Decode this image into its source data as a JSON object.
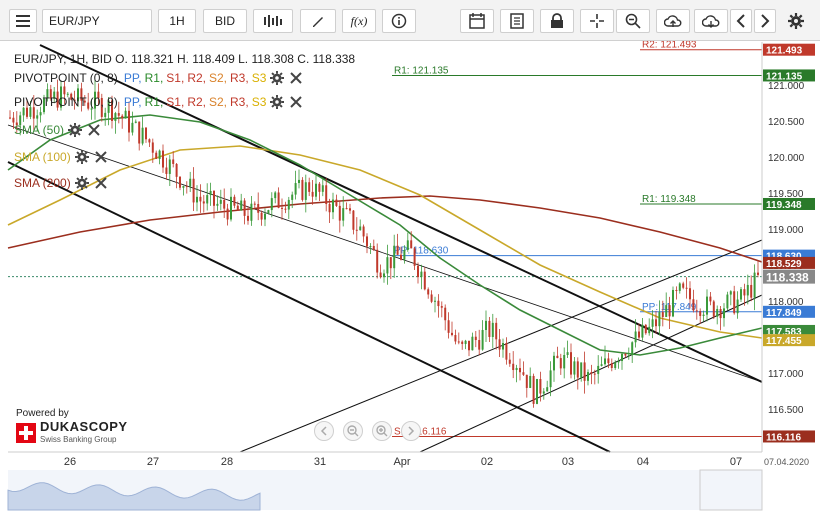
{
  "toolbar": {
    "symbol": "EUR/JPY",
    "timeframe": "1H",
    "price_type": "BID",
    "fx_label": "f(x)"
  },
  "info": {
    "text": "EUR/JPY, 1H, BID   O. 118.321  H. 118.409  L. 118.308  C. 118.338"
  },
  "indicators": [
    {
      "name": "PIVOTPOINT (0, 8)",
      "color": "#222222",
      "levels": [
        "PP,",
        "R1,",
        "S1,",
        "R2,",
        "S2,",
        "R3,",
        "S3"
      ]
    },
    {
      "name": "PIVOTPOINT (0, 9)",
      "color": "#222222",
      "levels": [
        "PP,",
        "R1,",
        "S1,",
        "R2,",
        "S2,",
        "R3,",
        "S3"
      ]
    },
    {
      "name": "SMA (50)",
      "color": "#3a8a3a"
    },
    {
      "name": "SMA (100)",
      "color": "#c9a82a"
    },
    {
      "name": "SMA (200)",
      "color": "#9b2e1e"
    }
  ],
  "level_colors": [
    "#3a7bd5",
    "#2a8a2a",
    "#c0392b",
    "#c0392b",
    "#d9822b",
    "#c0392b",
    "#d9b000"
  ],
  "branding": {
    "powered_by": "Powered by",
    "name": "DUKASCOPY",
    "sub": "Swiss Banking Group"
  },
  "chart_data": {
    "type": "candlestick",
    "x_labels": [
      "26",
      "27",
      "28",
      "31",
      "Apr",
      "02",
      "03",
      "04",
      "07"
    ],
    "date_label": "07.04.2020",
    "y_ticks": [
      121.0,
      120.5,
      120.0,
      119.5,
      119.0,
      118.5,
      118.0,
      117.5,
      117.0,
      116.5
    ],
    "ylim": [
      115.9,
      121.6
    ],
    "current_price": 118.338,
    "pivot_levels": [
      {
        "label": "R2: 121.493",
        "value": 121.493,
        "color": "#c0392b"
      },
      {
        "label": "R1: 121.135",
        "value": 121.135,
        "color": "#2a7a2a"
      },
      {
        "label": "R1: 119.348",
        "value": 119.348,
        "color": "#2a7a2a"
      },
      {
        "label": "PP: 118.630",
        "value": 118.63,
        "color": "#3a7bd5"
      },
      {
        "label": "PP: 117.849",
        "value": 117.849,
        "color": "#3a7bd5"
      },
      {
        "label": "S1: 116.116",
        "value": 116.116,
        "color": "#c0392b"
      }
    ],
    "price_tags": [
      {
        "text": "121.493",
        "value": 121.493,
        "color": "#c0392b"
      },
      {
        "text": "121.135",
        "value": 121.135,
        "color": "#2a7a2a"
      },
      {
        "text": "119.348",
        "value": 119.348,
        "color": "#2a7a2a"
      },
      {
        "text": "118.630",
        "value": 118.63,
        "color": "#3a7bd5"
      },
      {
        "text": "118.529",
        "value": 118.529,
        "color": "#9b2e1e"
      },
      {
        "text": "118.338",
        "value": 118.338,
        "color": "#888888"
      },
      {
        "text": "117.849",
        "value": 117.849,
        "color": "#3a7bd5"
      },
      {
        "text": "117.583",
        "value": 117.583,
        "color": "#3a8a3a"
      },
      {
        "text": "117.455",
        "value": 117.455,
        "color": "#c9a82a"
      },
      {
        "text": "116.116",
        "value": 116.116,
        "color": "#9b2e1e"
      }
    ]
  }
}
